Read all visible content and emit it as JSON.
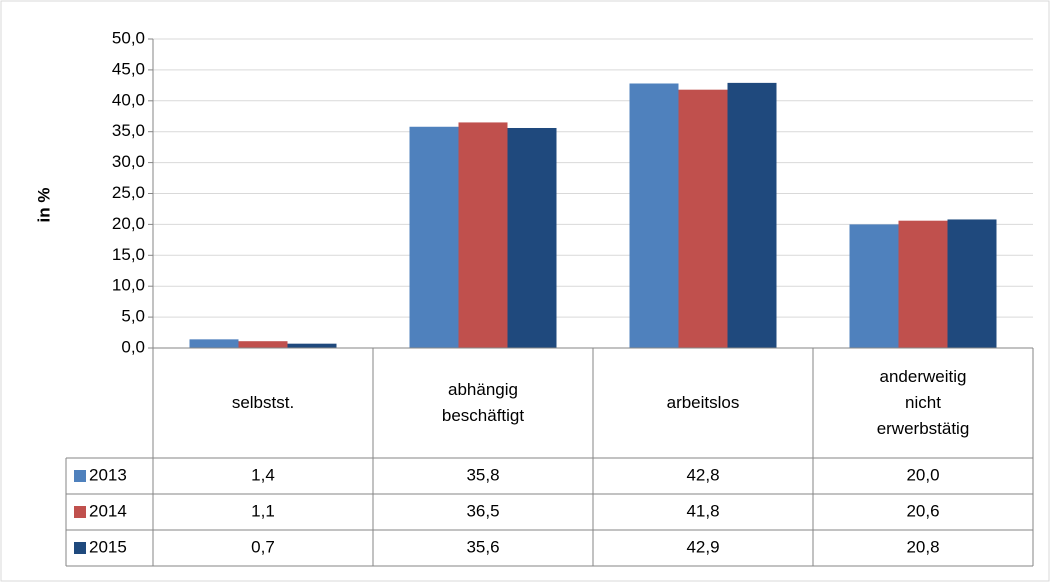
{
  "chart_data": {
    "type": "bar",
    "y_label": "in %",
    "categories": [
      "selbstst.",
      "abhängig beschäftigt",
      "arbeitslos",
      "anderweitig nicht erwerbstätig"
    ],
    "series": [
      {
        "name": "2013",
        "color": "#4f81bd",
        "values": [
          1.4,
          35.8,
          42.8,
          20.0
        ],
        "value_labels": [
          "1,4",
          "35,8",
          "42,8",
          "20,0"
        ]
      },
      {
        "name": "2014",
        "color": "#c0504d",
        "values": [
          1.1,
          36.5,
          41.8,
          20.6
        ],
        "value_labels": [
          "1,1",
          "36,5",
          "41,8",
          "20,6"
        ]
      },
      {
        "name": "2015",
        "color": "#1f497d",
        "values": [
          0.7,
          35.6,
          42.9,
          20.8
        ],
        "value_labels": [
          "0,7",
          "35,6",
          "42,9",
          "20,8"
        ]
      }
    ],
    "ylim": [
      0,
      50
    ],
    "yticks": [
      {
        "value": 0,
        "label": "0,0"
      },
      {
        "value": 5,
        "label": "5,0"
      },
      {
        "value": 10,
        "label": "10,0"
      },
      {
        "value": 15,
        "label": "15,0"
      },
      {
        "value": 20,
        "label": "20,0"
      },
      {
        "value": 25,
        "label": "25,0"
      },
      {
        "value": 30,
        "label": "30,0"
      },
      {
        "value": 35,
        "label": "35,0"
      },
      {
        "value": 40,
        "label": "40,0"
      },
      {
        "value": 45,
        "label": "45,0"
      },
      {
        "value": 50,
        "label": "50,0"
      }
    ],
    "grid": true
  }
}
